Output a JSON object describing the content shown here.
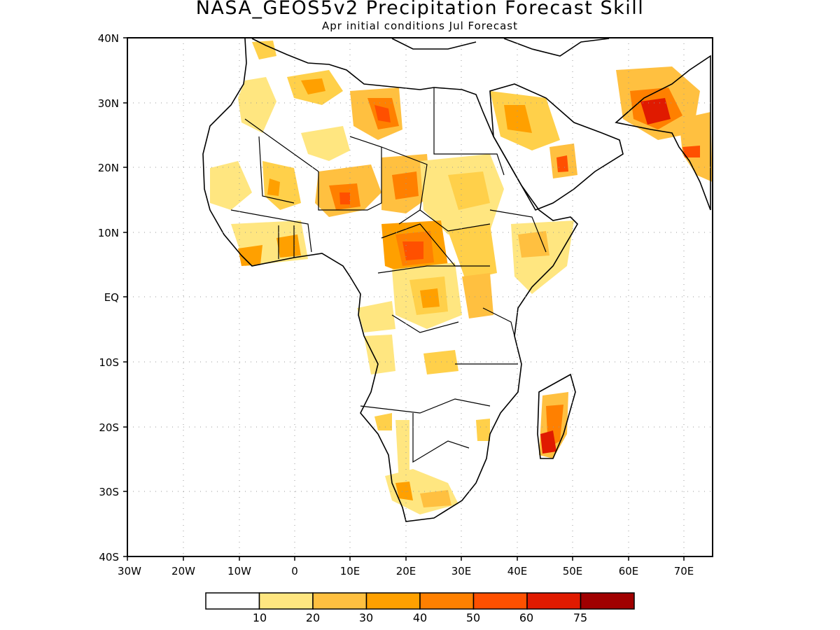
{
  "title": "NASA_GEOS5v2 Precipitation Forecast Skill",
  "subtitle": "Apr initial conditions  Jul Forecast",
  "axes": {
    "x_ticks": [
      "30W",
      "20W",
      "10W",
      "0",
      "10E",
      "20E",
      "30E",
      "40E",
      "50E",
      "60E",
      "70E"
    ],
    "y_ticks": [
      "40N",
      "30N",
      "20N",
      "10N",
      "EQ",
      "10S",
      "20S",
      "30S",
      "40S"
    ]
  },
  "colorbar": {
    "colors": [
      "#ffffff",
      "#ffe680",
      "#ffc040",
      "#ffa000",
      "#ff8000",
      "#ff5000",
      "#e01a00",
      "#a00000"
    ],
    "labels": [
      "10",
      "20",
      "30",
      "40",
      "50",
      "60",
      "75"
    ]
  },
  "map": {
    "region": "Africa",
    "lon_range": [
      -30,
      75
    ],
    "lat_range": [
      -40,
      40
    ],
    "grid": true
  }
}
